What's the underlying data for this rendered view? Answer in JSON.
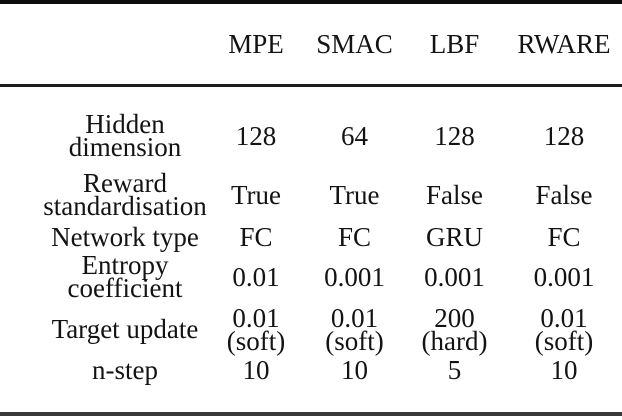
{
  "table": {
    "columns": [
      "",
      "MPE",
      "SMAC",
      "LBF",
      "RWARE"
    ],
    "column_keys": [
      "label",
      "mpe",
      "smac",
      "lbf",
      "rware"
    ],
    "rows": [
      {
        "label": "Hidden\ndimension",
        "values": [
          "128",
          "64",
          "128",
          "128"
        ]
      },
      {
        "label": "Reward\nstandardisation",
        "values": [
          "True",
          "True",
          "False",
          "False"
        ]
      },
      {
        "label": "Network type",
        "values": [
          "FC",
          "FC",
          "GRU",
          "FC"
        ]
      },
      {
        "label": "Entropy\ncoefficient",
        "values": [
          "0.01",
          "0.001",
          "0.001",
          "0.001"
        ]
      },
      {
        "label": "Target update",
        "values": [
          "0.01\n(soft)",
          "0.01\n(soft)",
          "200\n(hard)",
          "0.01\n(soft)"
        ]
      },
      {
        "label": "n-step",
        "values": [
          "10",
          "10",
          "5",
          "10"
        ]
      }
    ],
    "style": {
      "text_color": "#131313",
      "background": "#ffffff",
      "rule_color": "#1c1c1c"
    }
  }
}
